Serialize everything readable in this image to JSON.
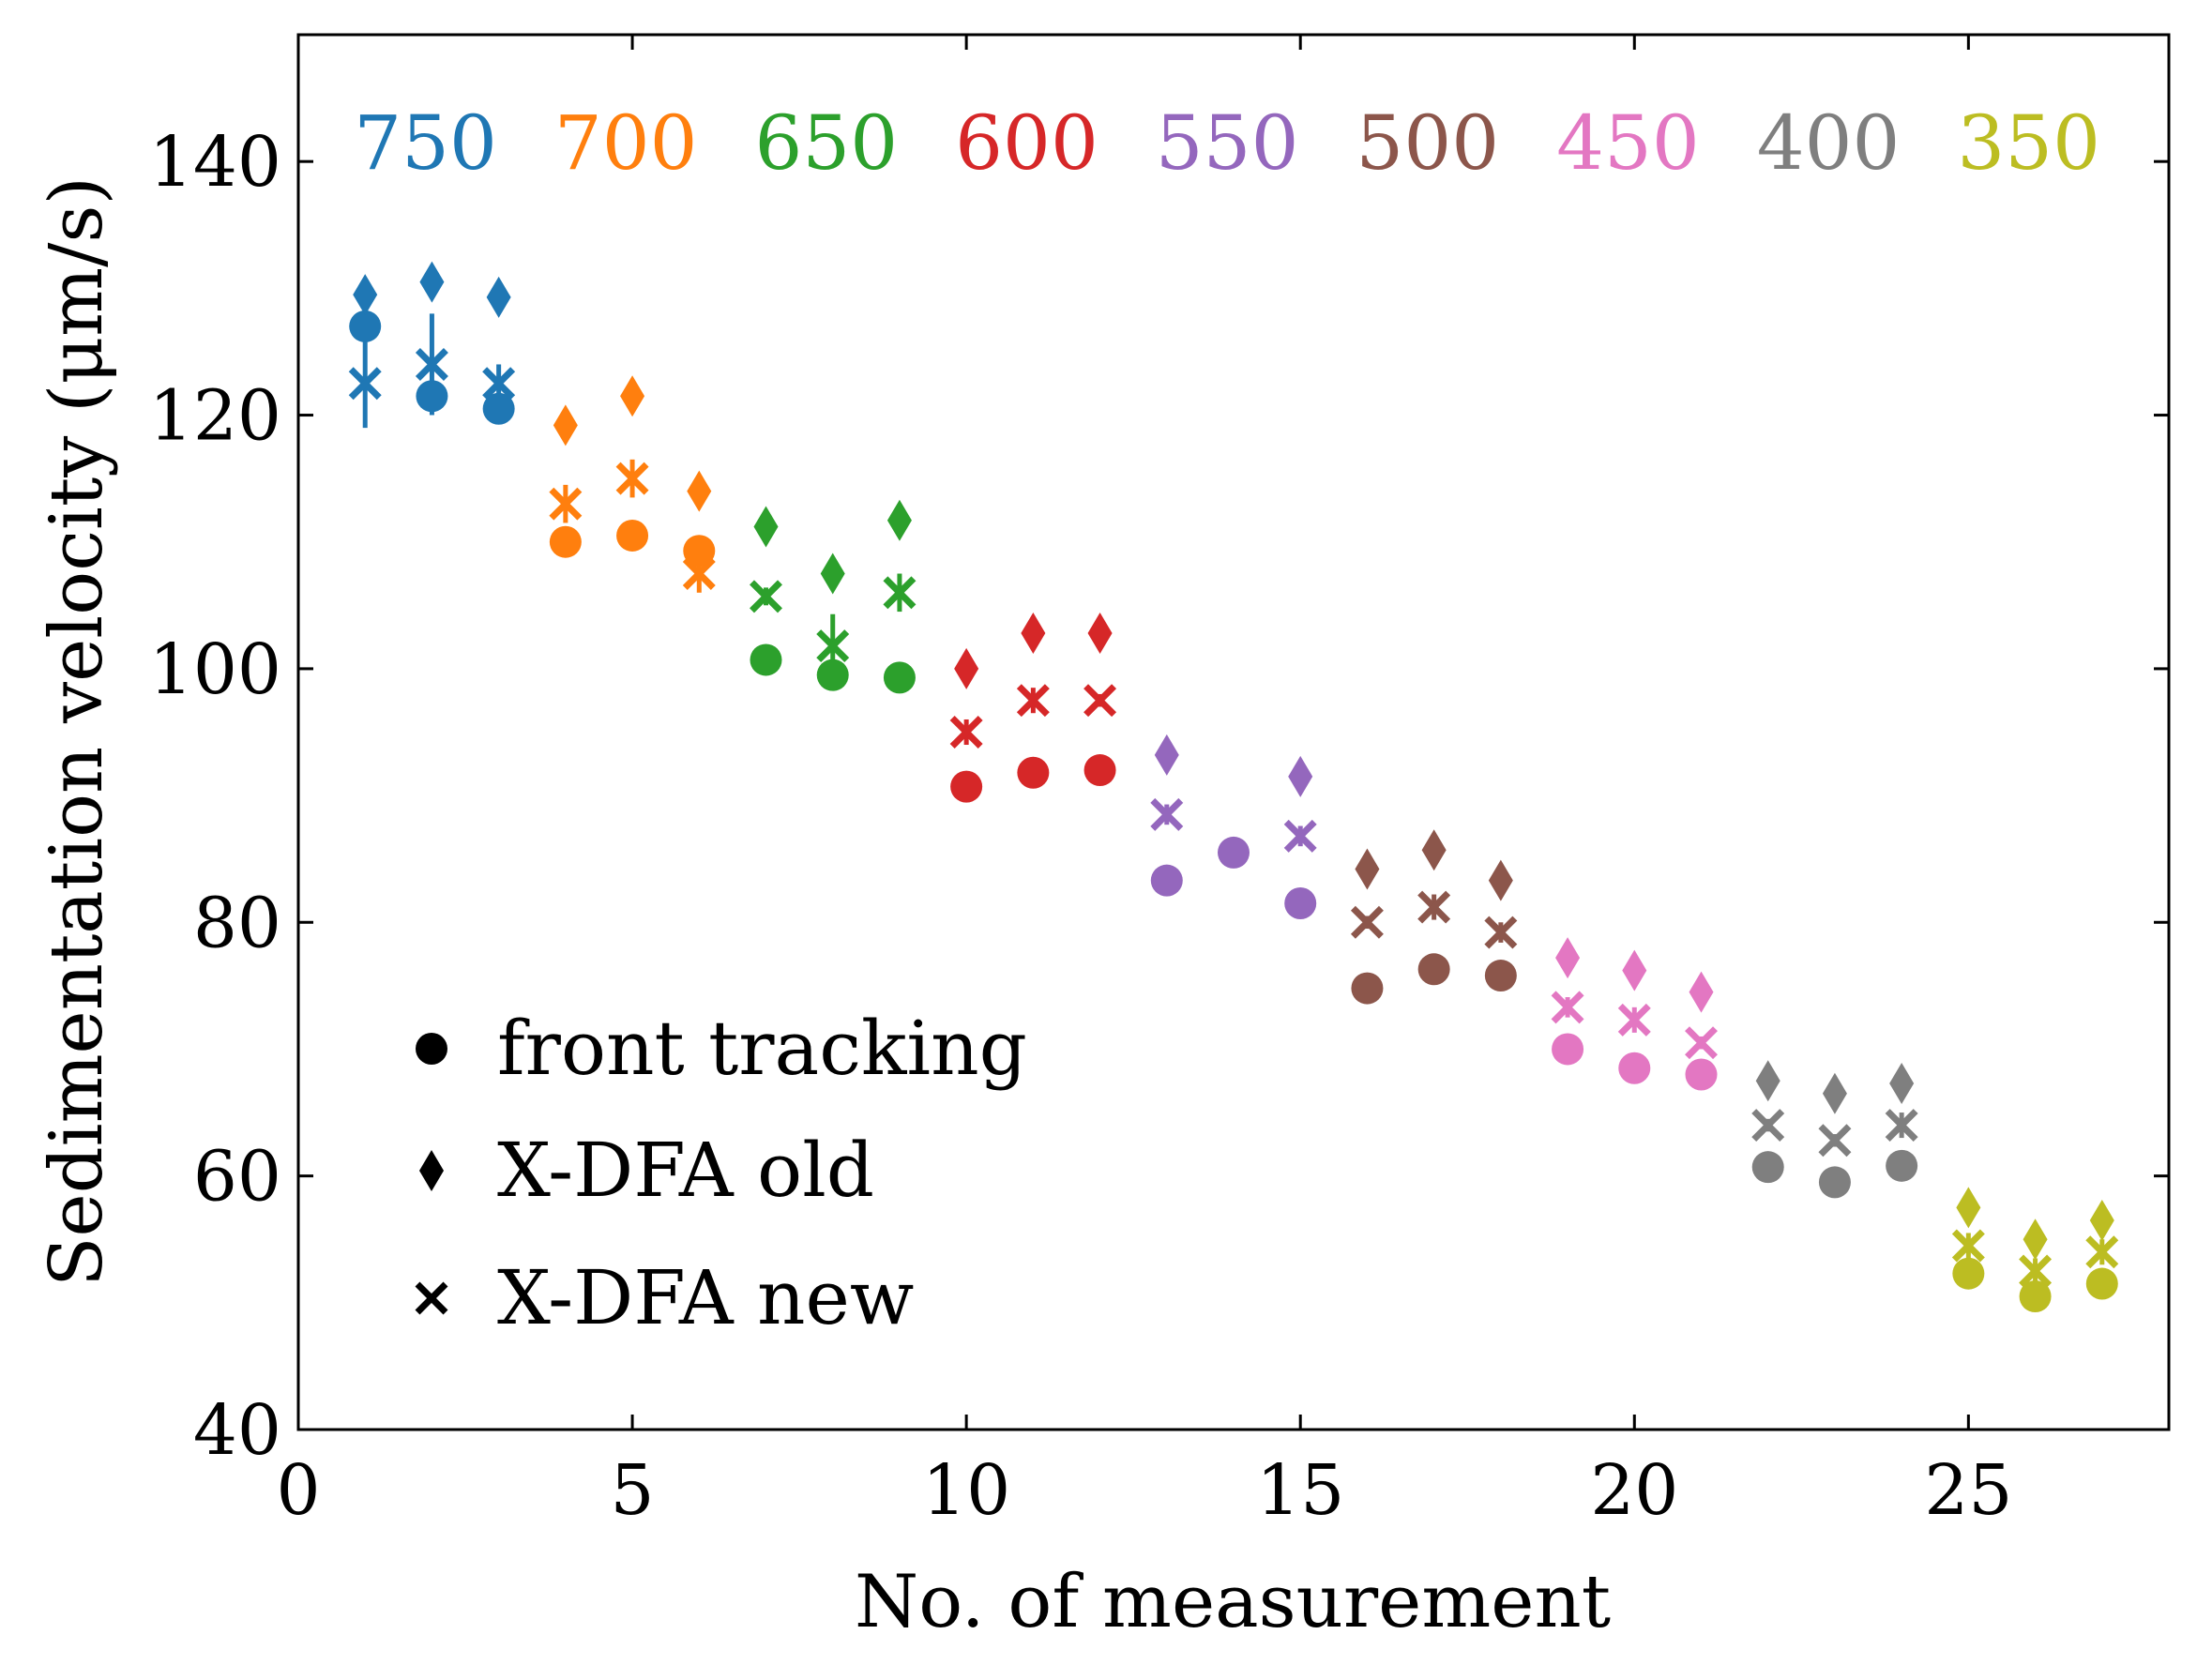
{
  "chart_data": {
    "type": "scatter",
    "xlabel": "No. of measurement",
    "ylabel": "Sedimentation velocity (μm/s)",
    "xlim": [
      0,
      28
    ],
    "ylim": [
      40,
      150
    ],
    "xticks": [
      0,
      5,
      10,
      15,
      20,
      25
    ],
    "yticks": [
      40,
      60,
      80,
      100,
      120,
      140
    ],
    "grid": false,
    "legend_position": "bottom-left",
    "legend": [
      {
        "marker": "circle",
        "label": "front tracking"
      },
      {
        "marker": "diamond",
        "label": "X-DFA old"
      },
      {
        "marker": "x",
        "label": "X-DFA new"
      }
    ],
    "groups": [
      {
        "label": "750",
        "color": "#1f77b4",
        "x": [
          1,
          2,
          3
        ],
        "front_tracking": [
          127.0,
          121.5,
          120.5
        ],
        "xdfa_old": [
          129.5,
          130.5,
          129.3
        ],
        "xdfa_new": [
          122.5,
          124.0,
          122.5
        ],
        "xdfa_new_err": [
          3.5,
          4.0,
          1.5
        ]
      },
      {
        "label": "700",
        "color": "#ff7f0e",
        "x": [
          4,
          5,
          6
        ],
        "front_tracking": [
          110.0,
          110.5,
          109.3
        ],
        "xdfa_old": [
          119.2,
          121.5,
          114.0
        ],
        "xdfa_new": [
          113.0,
          115.0,
          107.5
        ],
        "xdfa_new_err": [
          1.5,
          1.5,
          1.5
        ]
      },
      {
        "label": "650",
        "color": "#2ca02c",
        "x": [
          7,
          8,
          9
        ],
        "front_tracking": [
          100.7,
          99.5,
          99.3
        ],
        "xdfa_old": [
          111.2,
          107.5,
          111.7
        ],
        "xdfa_new": [
          105.7,
          101.8,
          106.0
        ],
        "xdfa_new_err": [
          0.7,
          2.5,
          1.5
        ]
      },
      {
        "label": "600",
        "color": "#d62728",
        "x": [
          10,
          11,
          12
        ],
        "front_tracking": [
          90.7,
          91.8,
          92.0
        ],
        "xdfa_old": [
          100.0,
          102.8,
          102.8
        ],
        "xdfa_new": [
          95.0,
          97.5,
          97.5
        ],
        "xdfa_new_err": [
          1.0,
          1.0,
          0.5
        ]
      },
      {
        "label": "550",
        "color": "#9467bd",
        "x": [
          13,
          14,
          15
        ],
        "front_tracking": [
          83.3,
          85.5,
          81.5
        ],
        "xdfa_old": [
          93.2,
          null,
          91.5
        ],
        "xdfa_new": [
          88.5,
          null,
          86.8
        ],
        "xdfa_new_err": [
          0.8,
          null,
          0.8
        ]
      },
      {
        "label": "500",
        "color": "#8c564b",
        "x": [
          16,
          17,
          18
        ],
        "front_tracking": [
          74.8,
          76.3,
          75.8
        ],
        "xdfa_old": [
          84.2,
          85.7,
          83.3
        ],
        "xdfa_new": [
          80.0,
          81.2,
          79.2
        ],
        "xdfa_new_err": [
          0.5,
          1.0,
          0.8
        ]
      },
      {
        "label": "450",
        "color": "#e377c2",
        "x": [
          19,
          20,
          21
        ],
        "front_tracking": [
          70.0,
          68.5,
          68.0
        ],
        "xdfa_old": [
          77.2,
          76.2,
          74.5
        ],
        "xdfa_new": [
          73.3,
          72.3,
          70.5
        ],
        "xdfa_new_err": [
          0.8,
          1.0,
          0.5
        ]
      },
      {
        "label": "400",
        "color": "#7f7f7f",
        "x": [
          22,
          23,
          24
        ],
        "front_tracking": [
          60.7,
          59.5,
          60.8
        ],
        "xdfa_old": [
          67.5,
          66.5,
          67.3
        ],
        "xdfa_new": [
          64.0,
          62.8,
          64.0
        ],
        "xdfa_new_err": [
          0.5,
          0.5,
          1.0
        ]
      },
      {
        "label": "350",
        "color": "#bcbd22",
        "x": [
          25,
          26,
          27
        ],
        "front_tracking": [
          52.3,
          50.5,
          51.5
        ],
        "xdfa_old": [
          57.5,
          55.0,
          56.5
        ],
        "xdfa_new": [
          54.5,
          52.5,
          54.0
        ],
        "xdfa_new_err": [
          1.0,
          1.0,
          1.0
        ]
      }
    ]
  }
}
